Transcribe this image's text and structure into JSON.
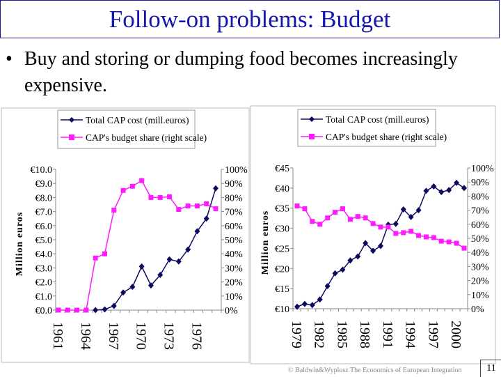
{
  "title": "Follow-on problems: Budget",
  "bullet": {
    "marker": "•",
    "text": "Buy and storing or dumping food becomes increasingly expensive."
  },
  "footer": "© Baldwin&Wyplosz The Economics of European Integration",
  "page_number": "11",
  "colors": {
    "title": "#1515b0",
    "cost_series": "#0a0a5e",
    "share_series": "#ff1aff"
  },
  "chart_data": [
    {
      "type": "line",
      "legend": [
        "Total CAP cost (mill.euros)",
        "CAP's budget share (right scale)"
      ],
      "legend_placement": "top",
      "ylabel": "Million euros",
      "ylim": [
        0,
        10
      ],
      "y2lim": [
        0,
        100
      ],
      "yticks": [
        "€0.0",
        "€1.0",
        "€2.0",
        "€3.0",
        "€4.0",
        "€5.0",
        "€6.0",
        "€7.0",
        "€8.0",
        "€9.0",
        "€10.0"
      ],
      "y2ticks": [
        "0%",
        "10%",
        "20%",
        "30%",
        "40%",
        "50%",
        "60%",
        "70%",
        "80%",
        "90%",
        "100%"
      ],
      "xticklabels": [
        "1961",
        "1964",
        "1967",
        "1970",
        "1973",
        "1976"
      ],
      "x": [
        1961,
        1962,
        1963,
        1964,
        1965,
        1966,
        1967,
        1968,
        1969,
        1970,
        1971,
        1972,
        1973,
        1974,
        1975,
        1976,
        1977,
        1978
      ],
      "series": [
        {
          "name": "Total CAP cost (mill.euros)",
          "axis": "left",
          "marker": "diamond",
          "values": [
            null,
            null,
            null,
            null,
            0,
            0.05,
            0.3,
            1.25,
            1.65,
            3.1,
            1.75,
            2.5,
            3.6,
            3.45,
            4.3,
            5.6,
            6.5,
            8.65
          ]
        },
        {
          "name": "CAP's budget share (right scale)",
          "axis": "right",
          "marker": "square",
          "values": [
            0,
            0,
            0,
            0,
            37,
            40,
            71,
            85,
            88,
            92,
            80,
            80,
            80.5,
            71.5,
            74,
            74,
            75.5,
            72
          ]
        }
      ]
    },
    {
      "type": "line",
      "legend": [
        "Total CAP cost (mill.euros)",
        "CAP's budget share (right scale)"
      ],
      "legend_placement": "top",
      "ylabel": "Million euros",
      "ylim": [
        10,
        45
      ],
      "y2lim": [
        0,
        100
      ],
      "yticks": [
        "€10",
        "€15",
        "€20",
        "€25",
        "€30",
        "€35",
        "€40",
        "€45"
      ],
      "y2ticks": [
        "0%",
        "10%",
        "20%",
        "30%",
        "40%",
        "50%",
        "60%",
        "70%",
        "80%",
        "90%",
        "100%"
      ],
      "xticklabels": [
        "1979",
        "1982",
        "1985",
        "1988",
        "1991",
        "1994",
        "1997",
        "2000"
      ],
      "x": [
        1979,
        1980,
        1981,
        1982,
        1983,
        1984,
        1985,
        1986,
        1987,
        1988,
        1989,
        1990,
        1991,
        1992,
        1993,
        1994,
        1995,
        1996,
        1997,
        1998,
        1999,
        2000,
        2001
      ],
      "series": [
        {
          "name": "Total CAP cost (mill.euros)",
          "axis": "left",
          "marker": "diamond",
          "values": [
            10.5,
            11.2,
            10.9,
            12.3,
            15.6,
            18.8,
            19.7,
            22,
            23,
            26.3,
            24.4,
            25.6,
            30.9,
            31.1,
            34.7,
            32.8,
            34.5,
            39.3,
            40.4,
            39,
            39.5,
            41.3,
            40
          ]
        },
        {
          "name": "CAP's budget share (right scale)",
          "axis": "right",
          "marker": "square",
          "values": [
            73,
            71,
            62,
            60,
            64.5,
            68.5,
            71,
            63.5,
            65.5,
            64.5,
            60.5,
            58,
            58,
            53.5,
            54,
            55,
            52,
            51,
            50.5,
            48,
            47.5,
            46.5,
            43
          ]
        }
      ]
    }
  ]
}
